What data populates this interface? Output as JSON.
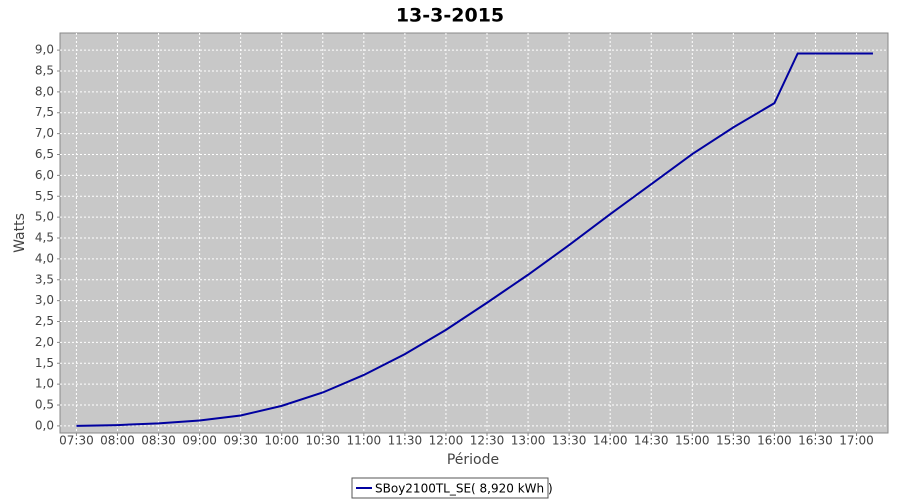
{
  "chart_data": {
    "type": "line",
    "title": "13-3-2015",
    "x_label": "Période",
    "y_label": "Watts",
    "x": [
      "07:30",
      "08:00",
      "08:30",
      "09:00",
      "09:30",
      "10:00",
      "10:30",
      "11:00",
      "11:30",
      "12:00",
      "12:30",
      "13:00",
      "13:30",
      "14:00",
      "14:30",
      "15:00",
      "15:30",
      "16:00",
      "16:17",
      "17:12"
    ],
    "series": [
      {
        "name": "SBoy2100TL_SE( 8,920 kWh )",
        "color": "#0000a0",
        "values": [
          0.0,
          0.02,
          0.06,
          0.13,
          0.25,
          0.48,
          0.8,
          1.22,
          1.72,
          2.3,
          2.95,
          3.62,
          4.33,
          5.07,
          5.79,
          6.51,
          7.15,
          7.73,
          8.92,
          8.92
        ]
      }
    ],
    "xlim": [
      "07:18",
      "17:23"
    ],
    "xticks": [
      "07:30",
      "08:00",
      "08:30",
      "09:00",
      "09:30",
      "10:00",
      "10:30",
      "11:00",
      "11:30",
      "12:00",
      "12:30",
      "13:00",
      "13:30",
      "14:00",
      "14:30",
      "15:00",
      "15:30",
      "16:00",
      "16:30",
      "17:00"
    ],
    "ylim": [
      -0.17,
      9.41
    ],
    "yticks": [
      {
        "value": 0,
        "label": "0,0"
      },
      {
        "value": 0.5,
        "label": "0,5"
      },
      {
        "value": 1,
        "label": "1,0"
      },
      {
        "value": 1.5,
        "label": "1,5"
      },
      {
        "value": 2,
        "label": "2,0"
      },
      {
        "value": 2.5,
        "label": "2,5"
      },
      {
        "value": 3,
        "label": "3,0"
      },
      {
        "value": 3.5,
        "label": "3,5"
      },
      {
        "value": 4,
        "label": "4,0"
      },
      {
        "value": 4.5,
        "label": "4,5"
      },
      {
        "value": 5,
        "label": "5,0"
      },
      {
        "value": 5.5,
        "label": "5,5"
      },
      {
        "value": 6,
        "label": "6,0"
      },
      {
        "value": 6.5,
        "label": "6,5"
      },
      {
        "value": 7,
        "label": "7,0"
      },
      {
        "value": 7.5,
        "label": "7,5"
      },
      {
        "value": 8,
        "label": "8,0"
      },
      {
        "value": 8.5,
        "label": "8,5"
      },
      {
        "value": 9,
        "label": "9,0"
      }
    ],
    "grid": true,
    "legend": "bottom"
  }
}
